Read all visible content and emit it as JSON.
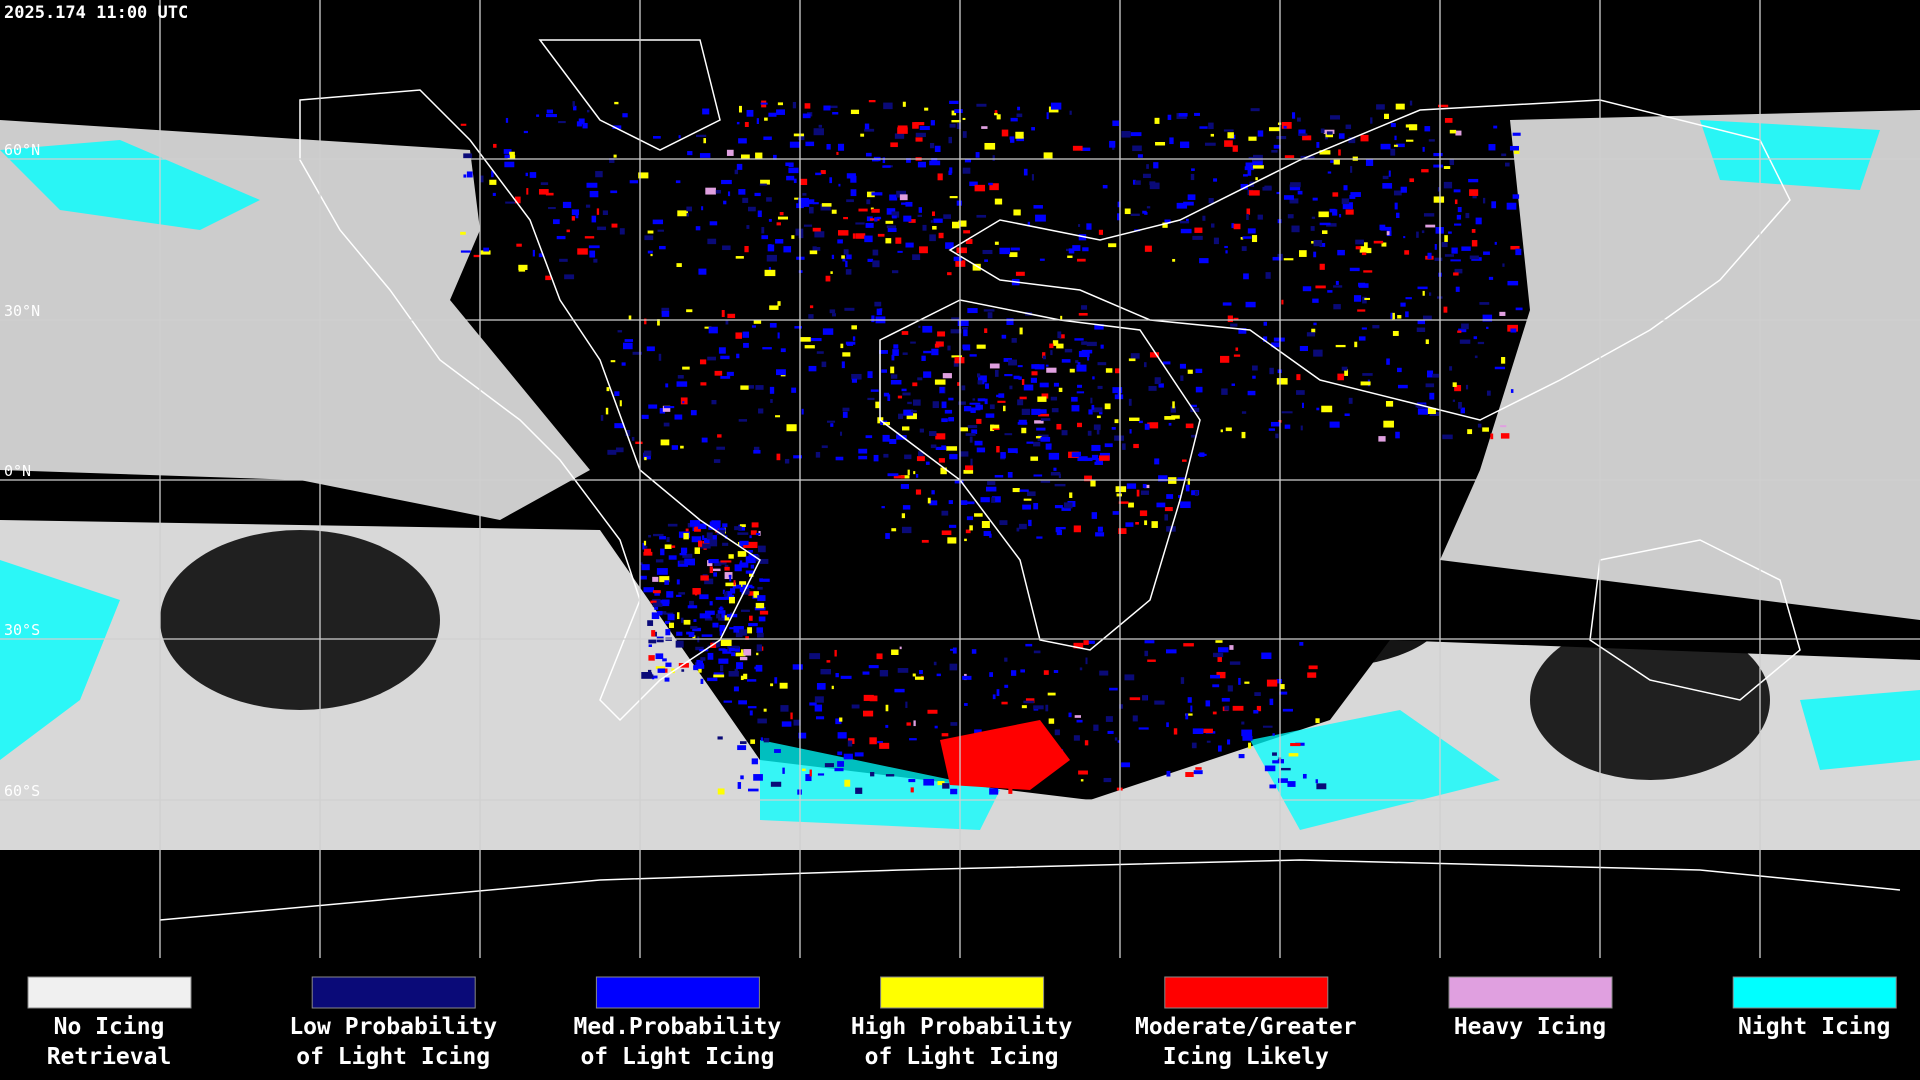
{
  "header": {
    "timestamp": "2025.174 11:00 UTC"
  },
  "latitude_labels": [
    "60°N",
    "30°N",
    "0°N",
    "30°S",
    "60°S"
  ],
  "legend": [
    {
      "lines": [
        "No Icing",
        "Retrieval"
      ],
      "color": "#f0f0f0"
    },
    {
      "lines": [
        "Low Probability",
        "of Light Icing"
      ],
      "color": "#0a0a78"
    },
    {
      "lines": [
        "Med.Probability",
        "of Light Icing"
      ],
      "color": "#0000ff"
    },
    {
      "lines": [
        "High Probability",
        "of Light Icing"
      ],
      "color": "#ffff00"
    },
    {
      "lines": [
        "Moderate/Greater",
        "Icing Likely"
      ],
      "color": "#ff0000"
    },
    {
      "lines": [
        "Heavy Icing"
      ],
      "color": "#e0a0e0"
    },
    {
      "lines": [
        "Night Icing"
      ],
      "color": "#00ffff"
    }
  ]
}
